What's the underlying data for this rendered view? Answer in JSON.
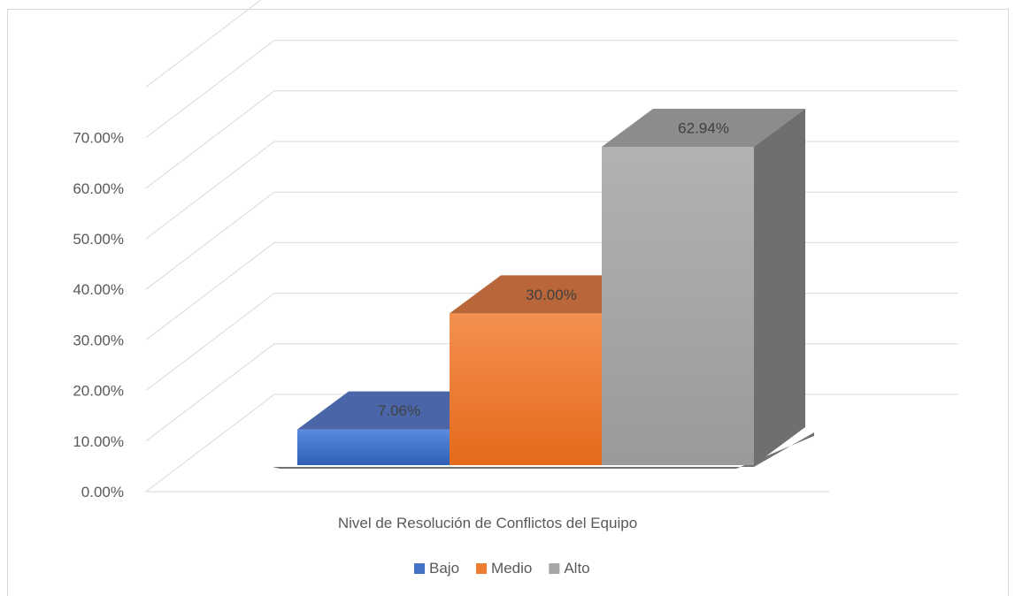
{
  "chart_data": {
    "type": "bar",
    "style": "3d-clustered-column",
    "title": "",
    "xlabel": "Nivel de Resolución de Conflictos del Equipo",
    "ylabel": "",
    "ylim": [
      0,
      0.8
    ],
    "y_ticks": [
      "0.00%",
      "10.00%",
      "20.00%",
      "30.00%",
      "40.00%",
      "50.00%",
      "60.00%",
      "70.00%"
    ],
    "categories": [
      "Nivel de Resolución de Conflictos del Equipo"
    ],
    "series": [
      {
        "name": "Bajo",
        "values": [
          0.0706
        ],
        "label": "7.06%",
        "color": "#4472c4"
      },
      {
        "name": "Medio",
        "values": [
          0.3
        ],
        "label": "30.00%",
        "color": "#ed7d31"
      },
      {
        "name": "Alto",
        "values": [
          0.6294
        ],
        "label": "62.94%",
        "color": "#a5a5a5"
      }
    ],
    "grid": true,
    "legend_position": "bottom"
  }
}
